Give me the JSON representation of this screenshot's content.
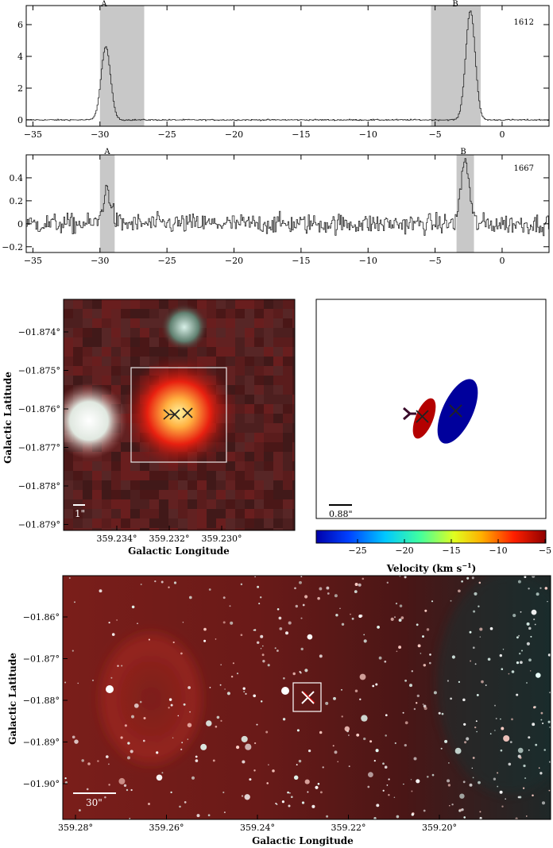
{
  "chart_data": [
    {
      "type": "line",
      "panel": "1612",
      "xlim": [
        -35.5,
        3.5
      ],
      "ylim": [
        -0.4,
        7.2
      ],
      "xticks": [
        -35,
        -30,
        -25,
        -20,
        -15,
        -10,
        -5,
        0
      ],
      "yticks": [
        0,
        2,
        4,
        6
      ],
      "xtick_labels": [
        "−35",
        "−30",
        "−25",
        "−20",
        "−15",
        "−10",
        "−5",
        "0"
      ],
      "ytick_labels": [
        "0",
        "2",
        "4",
        "6"
      ],
      "bands": [
        {
          "label": "A",
          "x0": -30.0,
          "x1": -26.7
        },
        {
          "label": "B",
          "x0": -5.3,
          "x1": -1.6
        }
      ],
      "peaks": [
        {
          "label": "A",
          "x": -29.6,
          "y": 4.7
        },
        {
          "label": "B",
          "x": -2.4,
          "y": 7.0
        }
      ],
      "series": [
        {
          "values": "spectrum"
        }
      ]
    },
    {
      "type": "line",
      "panel": "1667",
      "xlim": [
        -35.5,
        3.5
      ],
      "ylim": [
        -0.25,
        0.6
      ],
      "xticks": [
        -35,
        -30,
        -25,
        -20,
        -15,
        -10,
        -5,
        0
      ],
      "yticks": [
        -0.2,
        0,
        0.2,
        0.4
      ],
      "xtick_labels": [
        "−35",
        "−30",
        "−25",
        "−20",
        "−15",
        "−10",
        "−5",
        "0"
      ],
      "ytick_labels": [
        "−0.2",
        "0",
        "0.2",
        "0.4"
      ],
      "bands": [
        {
          "label": "A",
          "x0": -30.0,
          "x1": -28.9
        },
        {
          "label": "B",
          "x0": -3.4,
          "x1": -2.1
        }
      ],
      "peaks": [
        {
          "label": "A",
          "x": -29.5,
          "y": 0.3
        },
        {
          "label": "B",
          "x": -2.8,
          "y": 0.56
        }
      ]
    }
  ],
  "texts": {
    "spec1_id": "1612",
    "spec2_id": "1667",
    "band_A": "A",
    "band_B": "B",
    "zoom_ylabel": "Galactic Latitude",
    "zoom_xlabel": "Galactic Longitude",
    "zoom_yticks": [
      "−01.874°",
      "−01.875°",
      "−01.876°",
      "−01.877°",
      "−01.878°",
      "−01.879°"
    ],
    "zoom_xticks": [
      "359.234°",
      "359.232°",
      "359.230°"
    ],
    "zoom_scale": "1\"",
    "vel_scale": "0.88\"",
    "vel_label": "Velocity (km s",
    "vel_label_sup": "−1",
    "vel_label_end": ")",
    "vel_ticks": [
      "−25",
      "−20",
      "−15",
      "−10",
      "−5"
    ],
    "wide_ylabel": "Galactic Latitude",
    "wide_xlabel": "Galactic Longitude",
    "wide_yticks": [
      "−01.86°",
      "−01.87°",
      "−01.88°",
      "−01.89°",
      "−01.90°"
    ],
    "wide_xticks": [
      "359.28°",
      "359.26°",
      "359.24°",
      "359.22°",
      "359.20°"
    ],
    "wide_scale": "30\""
  },
  "colors": {
    "band": "#c8c8c8",
    "ellipse_A": "#b00000",
    "ellipse_B": "#000099",
    "colorbar": [
      "#0000aa",
      "#0050ff",
      "#00d0ff",
      "#60ff90",
      "#ffff00",
      "#ff8000",
      "#e00000",
      "#800000"
    ]
  }
}
